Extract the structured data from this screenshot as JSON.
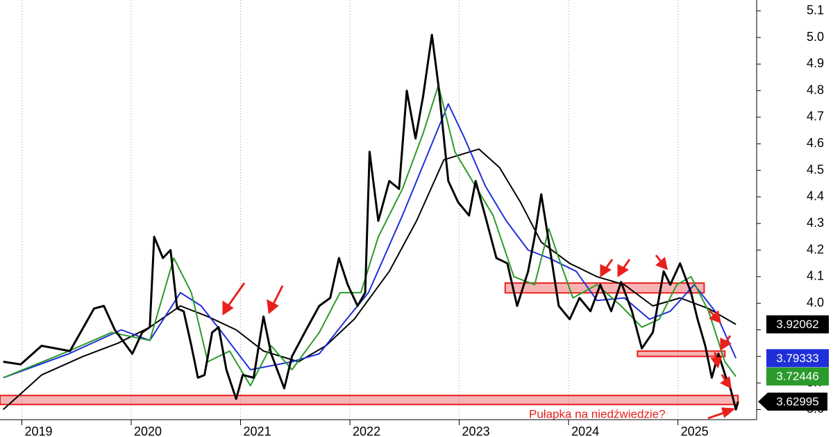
{
  "chart_data": {
    "type": "line",
    "xlim": [
      2018.8,
      2025.72
    ],
    "xticks": [
      2019,
      2020,
      2021,
      2022,
      2023,
      2024,
      2025
    ],
    "ylim": [
      3.562,
      5.141
    ],
    "yticks": [
      3.6,
      3.7,
      3.8,
      3.9,
      {
        "value": 4,
        "label": "4.0"
      },
      4.1,
      4.2,
      4.3,
      4.4,
      4.5,
      4.6,
      4.7,
      4.8,
      4.9,
      {
        "value": 5,
        "label": "5.0"
      },
      5.1
    ],
    "grid_x": true,
    "series": [
      {
        "color": "#000000",
        "width": 2,
        "x": [
          2018.83,
          2019.18,
          2019.56,
          2019.88,
          2020.17,
          2020.45,
          2020.7,
          2020.96,
          2021.21,
          2021.53,
          2021.78,
          2022.04,
          2022.36,
          2022.61,
          2022.86,
          2023.18,
          2023.37,
          2023.56,
          2023.75,
          2024.01,
          2024.26,
          2024.51,
          2024.77,
          2025.02,
          2025.28,
          2025.53
        ],
        "values": [
          3.6,
          3.73,
          3.8,
          3.85,
          3.91,
          3.99,
          3.95,
          3.9,
          3.82,
          3.78,
          3.84,
          3.94,
          4.12,
          4.31,
          4.54,
          4.58,
          4.51,
          4.38,
          4.23,
          4.15,
          4.1,
          4.07,
          3.99,
          4.02,
          3.98,
          3.92062
        ]
      },
      {
        "color": "#1f2fd8",
        "width": 2,
        "x": [
          2018.83,
          2019.43,
          2019.91,
          2020.17,
          2020.45,
          2020.64,
          2020.83,
          2021.09,
          2021.47,
          2021.72,
          2021.97,
          2022.17,
          2022.48,
          2022.74,
          2022.9,
          2023.05,
          2023.24,
          2023.43,
          2023.63,
          2023.82,
          2024.07,
          2024.26,
          2024.51,
          2024.74,
          2024.93,
          2025.15,
          2025.34,
          2025.53
        ],
        "values": [
          3.72,
          3.81,
          3.9,
          3.86,
          4.04,
          3.99,
          3.89,
          3.75,
          3.78,
          3.81,
          3.94,
          4.04,
          4.33,
          4.59,
          4.75,
          4.62,
          4.44,
          4.31,
          4.2,
          4.17,
          4.12,
          4.01,
          4.02,
          3.94,
          3.97,
          4.07,
          3.97,
          3.79333
        ]
      },
      {
        "color": "#2a9a2a",
        "width": 2,
        "x": [
          2018.83,
          2019.43,
          2019.82,
          2020.17,
          2020.39,
          2020.55,
          2020.7,
          2020.9,
          2021.09,
          2021.28,
          2021.47,
          2021.72,
          2021.91,
          2022.1,
          2022.26,
          2022.48,
          2022.67,
          2022.81,
          2022.96,
          2023.12,
          2023.31,
          2023.5,
          2023.69,
          2023.82,
          2023.91,
          2024.04,
          2024.26,
          2024.48,
          2024.67,
          2024.83,
          2024.99,
          2025.12,
          2025.28,
          2025.43,
          2025.53
        ],
        "values": [
          3.72,
          3.82,
          3.89,
          3.86,
          4.17,
          4.04,
          3.78,
          3.82,
          3.69,
          3.84,
          3.75,
          3.89,
          4.04,
          4.04,
          4.25,
          4.43,
          4.64,
          4.82,
          4.57,
          4.46,
          4.33,
          4.1,
          4.07,
          4.28,
          4.17,
          4.02,
          4.07,
          3.99,
          3.91,
          3.94,
          4.07,
          4.1,
          3.97,
          3.78,
          3.72446
        ]
      },
      {
        "color": "#000000",
        "width": 3,
        "x": [
          2018.83,
          2018.99,
          2019.18,
          2019.44,
          2019.66,
          2019.75,
          2019.85,
          2020.01,
          2020.1,
          2020.17,
          2020.21,
          2020.29,
          2020.36,
          2020.42,
          2020.48,
          2020.55,
          2020.61,
          2020.67,
          2020.74,
          2020.8,
          2020.87,
          2020.96,
          2021.02,
          2021.12,
          2021.21,
          2021.28,
          2021.4,
          2021.47,
          2021.6,
          2021.72,
          2021.82,
          2021.9,
          2021.98,
          2022.07,
          2022.14,
          2022.18,
          2022.26,
          2022.36,
          2022.45,
          2022.52,
          2022.6,
          2022.67,
          2022.75,
          2022.81,
          2022.9,
          2022.99,
          2023.09,
          2023.15,
          2023.25,
          2023.34,
          2023.44,
          2023.53,
          2023.63,
          2023.69,
          2023.75,
          2023.82,
          2023.91,
          2024.01,
          2024.1,
          2024.2,
          2024.29,
          2024.39,
          2024.48,
          2024.58,
          2024.67,
          2024.77,
          2024.87,
          2024.93,
          2025.02,
          2025.12,
          2025.18,
          2025.25,
          2025.31,
          2025.37,
          2025.44,
          2025.48,
          2025.53,
          2025.55
        ],
        "values": [
          3.78,
          3.77,
          3.84,
          3.82,
          3.98,
          3.99,
          3.9,
          3.81,
          3.89,
          3.91,
          4.25,
          4.17,
          4.2,
          3.98,
          3.97,
          3.84,
          3.72,
          3.73,
          3.89,
          3.91,
          3.75,
          3.64,
          3.73,
          3.72,
          3.95,
          3.81,
          3.68,
          3.8,
          3.9,
          3.99,
          4.02,
          4.17,
          4.07,
          3.99,
          4.04,
          4.57,
          4.31,
          4.46,
          4.43,
          4.8,
          4.62,
          4.78,
          5.01,
          4.82,
          4.46,
          4.38,
          4.33,
          4.46,
          4.31,
          4.17,
          4.15,
          3.99,
          4.12,
          4.25,
          4.41,
          4.23,
          3.99,
          3.94,
          4.02,
          3.97,
          4.07,
          3.97,
          4.08,
          3.97,
          3.83,
          3.89,
          4.12,
          4.07,
          4.15,
          4.04,
          3.94,
          3.84,
          3.72,
          3.81,
          3.72,
          3.68,
          3.6,
          3.62995
        ],
        "end_arrow": true
      }
    ],
    "zones": [
      {
        "x": [
          2018.8,
          2025.55
        ],
        "y": [
          3.619,
          3.653
        ],
        "color": "#f8b4b4",
        "edge": "#e8211d"
      },
      {
        "x": [
          2023.42,
          2025.24
        ],
        "y": [
          4.039,
          4.076
        ],
        "color": "#f8b4b4",
        "edge": "#e8211d"
      },
      {
        "x": [
          2024.63,
          2025.43
        ],
        "y": [
          3.8,
          3.82
        ],
        "color": "#f8b4b4",
        "edge": "#e8211d"
      }
    ],
    "annotation": "Pułapka na niedźwiedzie?"
  }
}
